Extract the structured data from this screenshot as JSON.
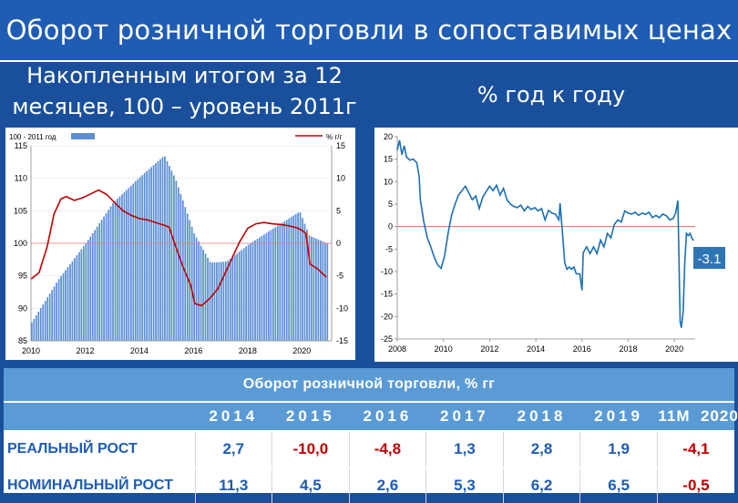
{
  "title": "Оборот розничной торговли в сопоставимых ценах",
  "subtitle_left_line1": "Накопленным итогом за 12",
  "subtitle_left_line2": "месяцев, 100 – уровень 2011г",
  "subtitle_right": "% год к году",
  "colors": {
    "bar": "#5b8fd6",
    "red_line": "#c00000",
    "blue_line": "#1b6fb5",
    "zero_line": "#d9534f",
    "label_box": "#2e75b6",
    "header": "#1f5cb4",
    "table_header": "#5b9bd5"
  },
  "chart_data": [
    {
      "type": "bar",
      "legend": {
        "bars": "100 - 2011 год",
        "line": "% г/г"
      },
      "x_tick_labels": [
        "2010",
        "2012",
        "2014",
        "2016",
        "2018",
        "2020"
      ],
      "y_left_ticks": [
        "85",
        "90",
        "95",
        "100",
        "105",
        "110",
        "115"
      ],
      "y_right_ticks": [
        "-15",
        "-10",
        "-5",
        "0",
        "5",
        "10",
        "15"
      ],
      "ylim_left": [
        85,
        115
      ],
      "ylim_right": [
        -15,
        15
      ],
      "xlim": [
        2010,
        2021.1
      ],
      "bar_series": {
        "name": "100 - 2011 год",
        "x_start": 2010,
        "x_step": 0.0833,
        "anchors": [
          [
            2010.0,
            87.8
          ],
          [
            2011.0,
            94.5
          ],
          [
            2012.0,
            100.0
          ],
          [
            2013.0,
            106.2
          ],
          [
            2014.0,
            110.2
          ],
          [
            2014.9,
            113.5
          ],
          [
            2015.3,
            110.0
          ],
          [
            2016.0,
            101.5
          ],
          [
            2016.6,
            97.0
          ],
          [
            2017.2,
            97.2
          ],
          [
            2018.0,
            99.8
          ],
          [
            2019.0,
            102.5
          ],
          [
            2019.9,
            104.9
          ],
          [
            2020.25,
            101.2
          ],
          [
            2020.9,
            100.0
          ]
        ]
      },
      "line_series": {
        "name": "% г/г",
        "axis": "right",
        "points": [
          [
            2010.0,
            -5.5
          ],
          [
            2010.3,
            -4.5
          ],
          [
            2010.6,
            -0.5
          ],
          [
            2010.85,
            4.5
          ],
          [
            2011.1,
            6.8
          ],
          [
            2011.3,
            7.2
          ],
          [
            2011.6,
            6.6
          ],
          [
            2011.9,
            7.0
          ],
          [
            2012.2,
            7.6
          ],
          [
            2012.5,
            8.2
          ],
          [
            2012.8,
            7.5
          ],
          [
            2013.1,
            6.2
          ],
          [
            2013.4,
            5.0
          ],
          [
            2013.7,
            4.3
          ],
          [
            2014.0,
            3.8
          ],
          [
            2014.3,
            3.6
          ],
          [
            2014.6,
            3.2
          ],
          [
            2014.9,
            2.8
          ],
          [
            2015.1,
            2.5
          ],
          [
            2015.3,
            0.0
          ],
          [
            2015.6,
            -3.5
          ],
          [
            2015.9,
            -6.5
          ],
          [
            2016.05,
            -9.3
          ],
          [
            2016.3,
            -9.6
          ],
          [
            2016.6,
            -8.5
          ],
          [
            2016.9,
            -7.0
          ],
          [
            2017.1,
            -5.2
          ],
          [
            2017.4,
            -2.5
          ],
          [
            2017.7,
            0.2
          ],
          [
            2018.0,
            2.3
          ],
          [
            2018.3,
            3.0
          ],
          [
            2018.6,
            3.2
          ],
          [
            2018.9,
            3.0
          ],
          [
            2019.2,
            2.9
          ],
          [
            2019.5,
            2.7
          ],
          [
            2019.8,
            2.4
          ],
          [
            2020.0,
            2.0
          ],
          [
            2020.15,
            1.5
          ],
          [
            2020.3,
            -3.2
          ],
          [
            2020.6,
            -4.0
          ],
          [
            2020.9,
            -5.2
          ]
        ]
      }
    },
    {
      "type": "line",
      "x_tick_labels": [
        "2008",
        "2010",
        "2012",
        "2014",
        "2016",
        "2018",
        "2020"
      ],
      "y_ticks": [
        "20",
        "15",
        "10",
        "5",
        "0",
        "-5",
        "-10",
        "-15",
        "-20",
        "-25"
      ],
      "ylim": [
        -25,
        20
      ],
      "xlim": [
        2008,
        2020.9
      ],
      "end_label": "-3.1",
      "series": [
        {
          "points": [
            [
              2008.0,
              17.0
            ],
            [
              2008.1,
              19.2
            ],
            [
              2008.2,
              16.0
            ],
            [
              2008.3,
              18.0
            ],
            [
              2008.4,
              15.5
            ],
            [
              2008.55,
              14.8
            ],
            [
              2008.7,
              15.0
            ],
            [
              2008.85,
              14.2
            ],
            [
              2008.95,
              11.0
            ],
            [
              2009.0,
              6.0
            ],
            [
              2009.15,
              1.0
            ],
            [
              2009.3,
              -2.5
            ],
            [
              2009.45,
              -4.5
            ],
            [
              2009.6,
              -6.8
            ],
            [
              2009.75,
              -8.5
            ],
            [
              2009.9,
              -9.3
            ],
            [
              2010.05,
              -6.5
            ],
            [
              2010.2,
              -1.5
            ],
            [
              2010.35,
              2.5
            ],
            [
              2010.5,
              5.0
            ],
            [
              2010.65,
              7.0
            ],
            [
              2010.8,
              8.0
            ],
            [
              2010.95,
              9.0
            ],
            [
              2011.1,
              7.5
            ],
            [
              2011.25,
              6.0
            ],
            [
              2011.4,
              6.8
            ],
            [
              2011.55,
              4.0
            ],
            [
              2011.7,
              6.5
            ],
            [
              2011.85,
              7.8
            ],
            [
              2012.0,
              9.0
            ],
            [
              2012.15,
              8.0
            ],
            [
              2012.3,
              9.2
            ],
            [
              2012.45,
              7.0
            ],
            [
              2012.6,
              8.5
            ],
            [
              2012.75,
              6.0
            ],
            [
              2012.9,
              5.0
            ],
            [
              2013.05,
              4.5
            ],
            [
              2013.2,
              4.2
            ],
            [
              2013.35,
              4.8
            ],
            [
              2013.5,
              3.5
            ],
            [
              2013.65,
              4.5
            ],
            [
              2013.8,
              3.8
            ],
            [
              2013.95,
              4.2
            ],
            [
              2014.1,
              3.5
            ],
            [
              2014.25,
              4.0
            ],
            [
              2014.4,
              1.5
            ],
            [
              2014.55,
              3.6
            ],
            [
              2014.7,
              3.0
            ],
            [
              2014.85,
              2.8
            ],
            [
              2015.0,
              1.5
            ],
            [
              2015.05,
              5.2
            ],
            [
              2015.15,
              -1.0
            ],
            [
              2015.25,
              -8.0
            ],
            [
              2015.35,
              -9.5
            ],
            [
              2015.45,
              -9.0
            ],
            [
              2015.55,
              -9.5
            ],
            [
              2015.65,
              -9.0
            ],
            [
              2015.75,
              -10.5
            ],
            [
              2015.9,
              -10.5
            ],
            [
              2016.0,
              -14.2
            ],
            [
              2016.05,
              -5.8
            ],
            [
              2016.2,
              -4.5
            ],
            [
              2016.35,
              -6.0
            ],
            [
              2016.5,
              -4.5
            ],
            [
              2016.65,
              -6.0
            ],
            [
              2016.8,
              -3.0
            ],
            [
              2016.95,
              -4.5
            ],
            [
              2017.1,
              -1.5
            ],
            [
              2017.25,
              -2.5
            ],
            [
              2017.4,
              0.5
            ],
            [
              2017.55,
              1.5
            ],
            [
              2017.7,
              1.0
            ],
            [
              2017.85,
              3.5
            ],
            [
              2018.0,
              3.0
            ],
            [
              2018.15,
              2.8
            ],
            [
              2018.3,
              3.2
            ],
            [
              2018.45,
              2.5
            ],
            [
              2018.6,
              3.0
            ],
            [
              2018.75,
              2.7
            ],
            [
              2018.9,
              3.2
            ],
            [
              2019.05,
              2.0
            ],
            [
              2019.2,
              2.5
            ],
            [
              2019.35,
              2.0
            ],
            [
              2019.5,
              2.8
            ],
            [
              2019.65,
              2.4
            ],
            [
              2019.8,
              1.5
            ],
            [
              2019.95,
              1.8
            ],
            [
              2020.05,
              3.0
            ],
            [
              2020.15,
              5.8
            ],
            [
              2020.25,
              -21.0
            ],
            [
              2020.3,
              -22.5
            ],
            [
              2020.38,
              -19.0
            ],
            [
              2020.45,
              -8.0
            ],
            [
              2020.52,
              -1.5
            ],
            [
              2020.6,
              -2.0
            ],
            [
              2020.68,
              -1.5
            ],
            [
              2020.75,
              -2.5
            ],
            [
              2020.83,
              -3.1
            ]
          ]
        }
      ]
    }
  ],
  "table": {
    "title": "Оборот розничной торговли, % гг",
    "years": [
      "2014",
      "2015",
      "2016",
      "2017",
      "2018",
      "2019",
      "11М  2020"
    ],
    "rows": [
      {
        "label": "РЕАЛЬНЫЙ РОСТ",
        "values": [
          "2,7",
          "-10,0",
          "-4,8",
          "1,3",
          "2,8",
          "1,9",
          "-4,1"
        ]
      },
      {
        "label": "НОМИНАЛЬНЫЙ РОСТ",
        "values": [
          "11,3",
          "4,5",
          "2,6",
          "5,3",
          "6,2",
          "6,5",
          "-0,5"
        ]
      }
    ]
  }
}
